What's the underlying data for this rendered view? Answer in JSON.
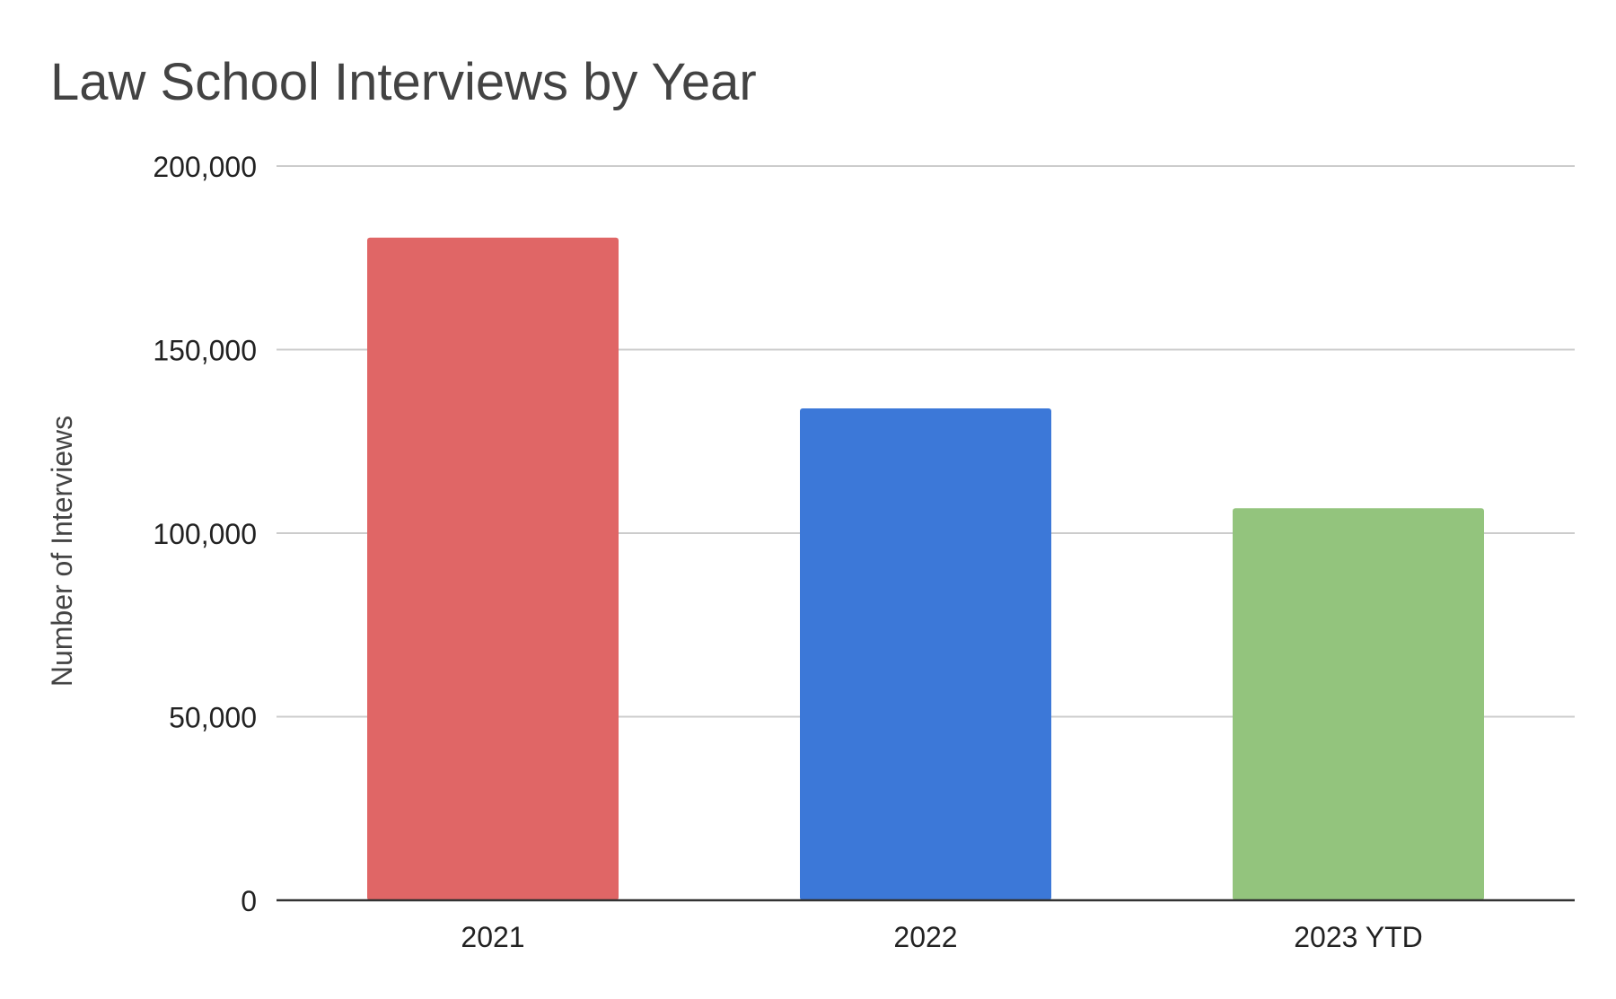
{
  "chart_data": {
    "type": "bar",
    "title": "Law School Interviews by Year",
    "xlabel": "",
    "ylabel": "Number of Interviews",
    "categories": [
      "2021",
      "2022",
      "2023 YTD"
    ],
    "values": [
      180500,
      134000,
      106800
    ],
    "colors": [
      "#e06666",
      "#3c78d8",
      "#93c47d"
    ],
    "ylim": [
      0,
      200000
    ],
    "yticks": [
      0,
      50000,
      100000,
      150000,
      200000
    ],
    "ytick_labels": [
      "0",
      "50,000",
      "100,000",
      "150,000",
      "200,000"
    ],
    "grid": true,
    "legend": "none"
  }
}
